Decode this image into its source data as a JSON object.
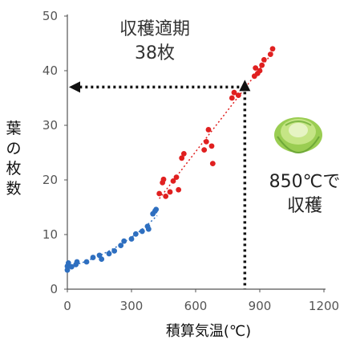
{
  "chart_data": {
    "type": "scatter",
    "title": "",
    "xlabel": "積算気温(℃)",
    "ylabel": "葉の枚数",
    "xlim": [
      0,
      1200
    ],
    "ylim": [
      0,
      50
    ],
    "x_ticks": [
      "0",
      "300",
      "600",
      "900",
      "1200"
    ],
    "y_ticks": [
      "0",
      "10",
      "20",
      "30",
      "40",
      "50"
    ],
    "grid": false,
    "series": [
      {
        "color": "#2e6fc0",
        "trend": "dotted",
        "points": [
          [
            0,
            3.5
          ],
          [
            0,
            4.2
          ],
          [
            5,
            4.8
          ],
          [
            20,
            4.1
          ],
          [
            40,
            4.5
          ],
          [
            45,
            5.0
          ],
          [
            90,
            5.0
          ],
          [
            120,
            5.8
          ],
          [
            150,
            6.2
          ],
          [
            160,
            5.5
          ],
          [
            195,
            6.5
          ],
          [
            220,
            7.0
          ],
          [
            250,
            8.0
          ],
          [
            265,
            8.8
          ],
          [
            300,
            9.2
          ],
          [
            320,
            10.1
          ],
          [
            350,
            10.6
          ],
          [
            375,
            11.5
          ],
          [
            380,
            11.0
          ],
          [
            400,
            13.8
          ],
          [
            410,
            14.3
          ],
          [
            415,
            14.6
          ]
        ]
      },
      {
        "color": "#e02020",
        "trend": "dotted",
        "points": [
          [
            430,
            17.5
          ],
          [
            445,
            19.5
          ],
          [
            450,
            20.1
          ],
          [
            460,
            17.0
          ],
          [
            480,
            17.8
          ],
          [
            495,
            19.8
          ],
          [
            510,
            20.5
          ],
          [
            520,
            18.2
          ],
          [
            535,
            24.0
          ],
          [
            545,
            24.8
          ],
          [
            640,
            25.5
          ],
          [
            650,
            27.0
          ],
          [
            660,
            29.2
          ],
          [
            675,
            26.2
          ],
          [
            680,
            23.0
          ],
          [
            770,
            35.0
          ],
          [
            780,
            36.0
          ],
          [
            800,
            35.5
          ],
          [
            830,
            37.0
          ],
          [
            875,
            39.0
          ],
          [
            880,
            40.5
          ],
          [
            890,
            39.5
          ],
          [
            900,
            40.0
          ],
          [
            910,
            41.0
          ],
          [
            920,
            42.0
          ],
          [
            950,
            43.0
          ],
          [
            960,
            44.0
          ]
        ]
      }
    ],
    "annotations": {
      "harvest_label_line1": "収穫適期",
      "harvest_label_line2": "38枚",
      "harvest_x_line1": "850℃で",
      "harvest_x_line2": "収穫",
      "harvest_x_value": 830,
      "harvest_y_value": 37,
      "icon": "cabbage-icon",
      "arrow_color": "#111111"
    }
  }
}
